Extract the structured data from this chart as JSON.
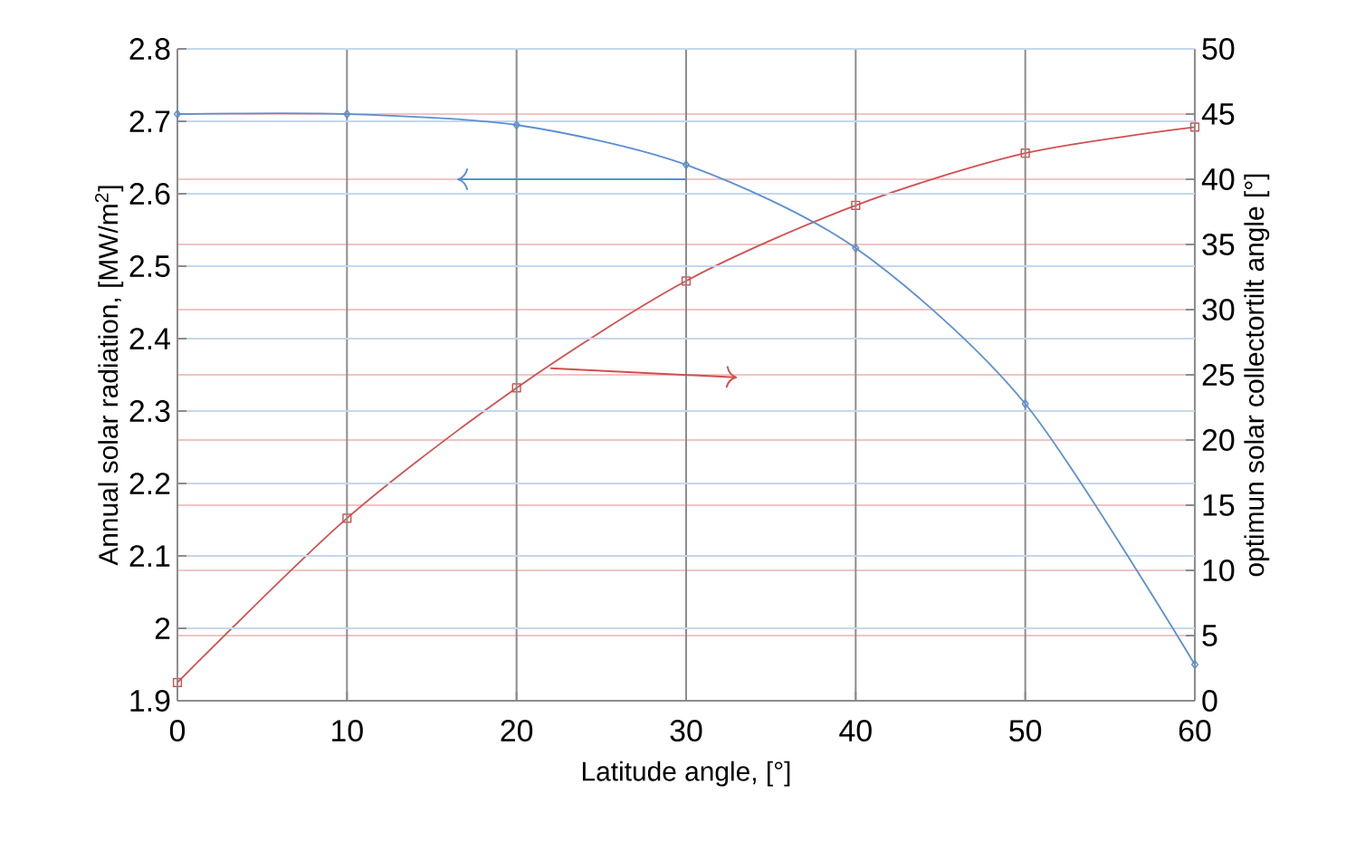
{
  "chart_data": {
    "type": "line",
    "x": [
      0,
      10,
      20,
      30,
      40,
      50,
      60
    ],
    "xlabel": "Latitude angle, [°]",
    "ylabel": "Annual solar radiation, [MW/m$^{2}$]",
    "y2label": "optimun solar collectortilt angle [°]",
    "xlim": [
      0,
      60
    ],
    "xticks": [
      0,
      10,
      20,
      30,
      40,
      50,
      60
    ],
    "ylim": [
      1.9,
      2.8
    ],
    "yticks": [
      1.9,
      2,
      2.1,
      2.2,
      2.3,
      2.4,
      2.5,
      2.6,
      2.7,
      2.8
    ],
    "y2lim": [
      0,
      50
    ],
    "y2ticks": [
      0,
      5,
      10,
      15,
      20,
      25,
      30,
      35,
      40,
      45,
      50
    ],
    "grid": true,
    "line_style": "solid",
    "series": [
      {
        "color": "#5b8fd0",
        "marker": "diamond",
        "values": [
          2.71,
          2.71,
          2.695,
          2.64,
          2.525,
          2.31,
          1.95
        ]
      },
      {
        "color": "#d0504f",
        "marker": "square",
        "axis": "y2",
        "values": [
          1.4,
          14,
          24,
          32.2,
          38,
          42,
          44
        ]
      }
    ]
  }
}
